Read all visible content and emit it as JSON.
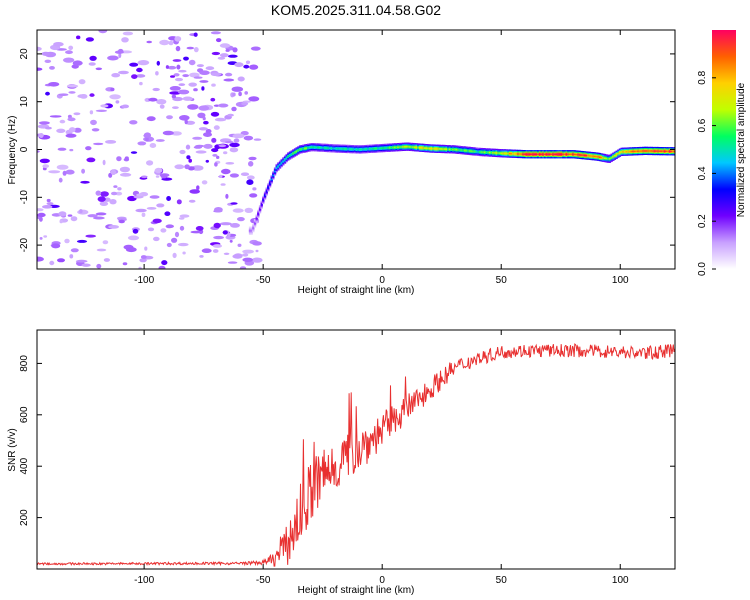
{
  "title": "KOM5.2025.311.04.58.G02",
  "chart_data": [
    {
      "type": "heatmap",
      "title": "KOM5.2025.311.04.58.G02",
      "xlabel": "Height of straight line (km)",
      "ylabel": "Frequency (Hz)",
      "xlim": [
        -145,
        123
      ],
      "ylim": [
        -25,
        25
      ],
      "xticks": [
        -100,
        -50,
        0,
        50,
        100
      ],
      "xtick_labels": [
        "-100",
        "-50",
        "0",
        "50",
        "100"
      ],
      "yticks": [
        -20,
        -10,
        0,
        10,
        20
      ],
      "ytick_labels": [
        "-20",
        "-10",
        "0",
        "10",
        "20"
      ],
      "ridge": {
        "description": "Main spectral ridge near 0 Hz",
        "x": [
          -55,
          -50,
          -45,
          -40,
          -35,
          -30,
          -20,
          -10,
          0,
          10,
          20,
          30,
          40,
          50,
          60,
          70,
          80,
          90,
          95,
          100,
          110,
          123
        ],
        "y": [
          -17,
          -10,
          -4,
          -1.5,
          0,
          0.5,
          0.2,
          0,
          0.3,
          0.6,
          0.2,
          0,
          -0.5,
          -0.8,
          -1,
          -1,
          -1,
          -1.5,
          -2,
          -0.5,
          -0.3,
          -0.4
        ],
        "amplitude": [
          0.15,
          0.3,
          0.45,
          0.55,
          0.6,
          0.55,
          0.5,
          0.5,
          0.55,
          0.65,
          0.75,
          0.6,
          0.55,
          0.7,
          1.0,
          1.0,
          0.95,
          0.9,
          0.6,
          0.8,
          0.9,
          0.95
        ]
      },
      "noise_region_x": [
        -145,
        -52
      ],
      "colorbar": {
        "label": "Normalized spectral amplitude",
        "range": [
          0,
          1
        ],
        "ticks": [
          0.0,
          0.2,
          0.4,
          0.6,
          0.8
        ],
        "tick_labels": [
          "0.0",
          "0.2",
          "0.4",
          "0.6",
          "0.8"
        ],
        "colors": [
          "#ffffff",
          "#c8a0ff",
          "#7000ff",
          "#0000ff",
          "#00c8ff",
          "#00ff60",
          "#c0ff00",
          "#ffd000",
          "#ff6000",
          "#ff0060"
        ]
      }
    },
    {
      "type": "line",
      "xlabel": "Height of straight line (km)",
      "ylabel": "SNR (v/v)",
      "xlim": [
        -145,
        123
      ],
      "ylim": [
        0,
        930
      ],
      "xticks": [
        -100,
        -50,
        0,
        50,
        100
      ],
      "xtick_labels": [
        "-100",
        "-50",
        "0",
        "50",
        "100"
      ],
      "yticks": [
        200,
        400,
        600,
        800
      ],
      "ytick_labels": [
        "200",
        "400",
        "600",
        "800"
      ],
      "color": "#e83030",
      "envelope": {
        "x": [
          -145,
          -60,
          -50,
          -45,
          -40,
          -35,
          -30,
          -25,
          -20,
          -15,
          -10,
          -5,
          0,
          5,
          10,
          15,
          20,
          25,
          30,
          35,
          40,
          45,
          50,
          60,
          80,
          100,
          110,
          123
        ],
        "y": [
          20,
          22,
          25,
          40,
          90,
          200,
          300,
          360,
          400,
          440,
          470,
          500,
          540,
          580,
          620,
          660,
          700,
          740,
          780,
          800,
          820,
          830,
          845,
          850,
          850,
          845,
          840,
          850
        ],
        "spread": [
          4,
          5,
          8,
          30,
          80,
          120,
          130,
          120,
          110,
          100,
          90,
          80,
          70,
          60,
          55,
          50,
          45,
          40,
          35,
          30,
          28,
          26,
          26,
          26,
          26,
          26,
          26,
          26
        ]
      }
    }
  ]
}
